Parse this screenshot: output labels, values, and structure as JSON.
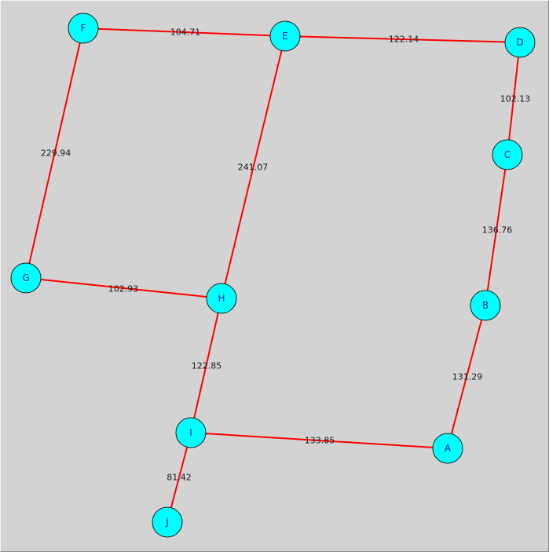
{
  "colors": {
    "background": "#d3d3d3",
    "edge": "#ff0000",
    "node_fill": "#00ffff",
    "node_text": "#1a1aa8",
    "edge_text": "#1a1a1a"
  },
  "nodes": [
    {
      "id": "F",
      "label": "F"
    },
    {
      "id": "E",
      "label": "E"
    },
    {
      "id": "D",
      "label": "D"
    },
    {
      "id": "C",
      "label": "C"
    },
    {
      "id": "B",
      "label": "B"
    },
    {
      "id": "A",
      "label": "A"
    },
    {
      "id": "G",
      "label": "G"
    },
    {
      "id": "H",
      "label": "H"
    },
    {
      "id": "I",
      "label": "I"
    },
    {
      "id": "J",
      "label": "J"
    }
  ],
  "edges": [
    {
      "from": "F",
      "to": "E",
      "weight": "104.71"
    },
    {
      "from": "E",
      "to": "D",
      "weight": "122.14"
    },
    {
      "from": "D",
      "to": "C",
      "weight": "102.13"
    },
    {
      "from": "C",
      "to": "B",
      "weight": "136.76"
    },
    {
      "from": "B",
      "to": "A",
      "weight": "131.29"
    },
    {
      "from": "A",
      "to": "I",
      "weight": "133.85"
    },
    {
      "from": "I",
      "to": "J",
      "weight": "81.42"
    },
    {
      "from": "I",
      "to": "H",
      "weight": "122.85"
    },
    {
      "from": "H",
      "to": "G",
      "weight": "102.93"
    },
    {
      "from": "G",
      "to": "F",
      "weight": "229.94"
    },
    {
      "from": "H",
      "to": "E",
      "weight": "241.07"
    }
  ]
}
